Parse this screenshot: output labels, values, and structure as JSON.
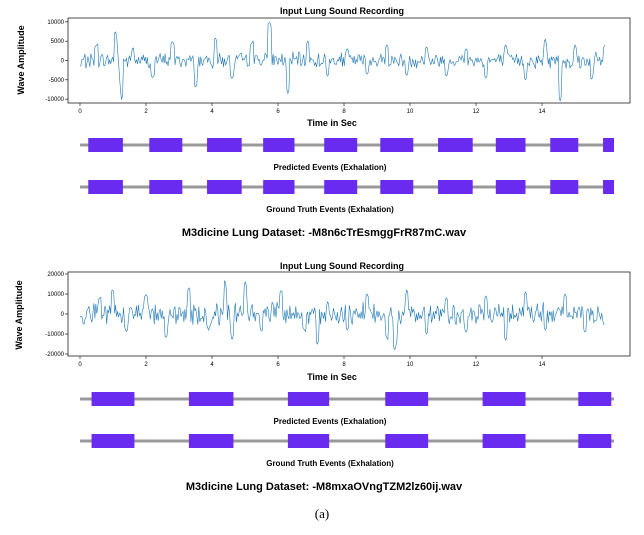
{
  "colors": {
    "signal": "#1f77b4",
    "event": "#6a2bf0",
    "timeline": "#999999",
    "axis": "#000000"
  },
  "chart_data": [
    {
      "type": "line",
      "title": "Input Lung Sound Recording",
      "xlabel": "Time in Sec",
      "ylabel": "Wave Amplitude",
      "xlim": [
        0,
        16
      ],
      "ylim": [
        -11000,
        11000
      ],
      "x_ticks": [
        "0",
        "2",
        "4",
        "6",
        "8",
        "10",
        "12",
        "14"
      ],
      "y_ticks": [
        "10000",
        "5000",
        "0",
        "-5000",
        "-10000"
      ],
      "x_tick_values": [
        0,
        2,
        4,
        6,
        8,
        10,
        12,
        14
      ],
      "y_tick_values": [
        10000,
        5000,
        0,
        -5000,
        -10000
      ],
      "series": [
        {
          "x": [
            0,
            0.5,
            1.1,
            1.25,
            1.6,
            2.2,
            2.8,
            3.5,
            4.1,
            4.6,
            5.2,
            5.75,
            6.3,
            6.9,
            7.5,
            8.1,
            8.7,
            9.3,
            9.9,
            10.5,
            11.1,
            11.7,
            12.3,
            12.9,
            13.5,
            14.1,
            14.55,
            15.0,
            15.5,
            15.9
          ],
          "values": [
            -1500,
            4000,
            7500,
            -10500,
            3500,
            -4500,
            5000,
            -7000,
            6000,
            -4800,
            4500,
            10000,
            -8500,
            5000,
            -4000,
            3000,
            -3500,
            4000,
            -3800,
            3500,
            -4000,
            3000,
            -4500,
            4000,
            -5000,
            5500,
            -10500,
            4000,
            -5000,
            4000
          ]
        }
      ],
      "events": [
        {
          "label": "Predicted Events (Exhalation)",
          "intervals": [
            [
              0.25,
              1.3
            ],
            [
              2.1,
              3.1
            ],
            [
              3.85,
              4.9
            ],
            [
              5.55,
              6.5
            ],
            [
              7.4,
              8.4
            ],
            [
              9.1,
              10.1
            ],
            [
              10.85,
              11.9
            ],
            [
              12.6,
              13.5
            ],
            [
              14.25,
              15.1
            ],
            [
              15.85,
              16.8
            ]
          ]
        },
        {
          "label": "Ground Truth Events (Exhalation)",
          "intervals": [
            [
              0.25,
              1.3
            ],
            [
              2.1,
              3.1
            ],
            [
              3.85,
              4.9
            ],
            [
              5.55,
              6.5
            ],
            [
              7.4,
              8.4
            ],
            [
              9.1,
              10.1
            ],
            [
              10.85,
              11.9
            ],
            [
              12.6,
              13.5
            ],
            [
              14.25,
              15.1
            ],
            [
              15.85,
              16.8
            ]
          ]
        }
      ],
      "caption": "M3dicine Lung Dataset: -M8n6cTrEsmggFrR87mC.wav"
    },
    {
      "type": "line",
      "title": "Input Lung Sound Recording",
      "xlabel": "Time in Sec",
      "ylabel": "Wave Amplitude",
      "xlim": [
        0,
        16
      ],
      "ylim": [
        -21000,
        21000
      ],
      "x_ticks": [
        "0",
        "2",
        "4",
        "6",
        "8",
        "10",
        "12",
        "14"
      ],
      "y_ticks": [
        "20000",
        "10000",
        "0",
        "-10000",
        "-20000"
      ],
      "x_tick_values": [
        0,
        2,
        4,
        6,
        8,
        10,
        12,
        14
      ],
      "y_tick_values": [
        20000,
        10000,
        0,
        -10000,
        -20000
      ],
      "series": [
        {
          "x": [
            0,
            0.6,
            1.0,
            1.4,
            2.0,
            2.6,
            3.3,
            3.9,
            4.4,
            4.6,
            5.0,
            5.5,
            6.1,
            6.8,
            7.2,
            7.5,
            8.1,
            8.7,
            9.3,
            9.55,
            9.9,
            10.5,
            11.1,
            11.7,
            12.3,
            12.9,
            13.5,
            14.1,
            14.7,
            15.3,
            15.9
          ],
          "values": [
            -1500,
            8000,
            12000,
            -9000,
            10000,
            -12000,
            13000,
            -8000,
            17500,
            -14000,
            16500,
            -9000,
            12000,
            -8000,
            -15000,
            6000,
            -8000,
            10000,
            -12000,
            -18000,
            12000,
            -10000,
            8000,
            -9000,
            9000,
            -13000,
            11000,
            -8000,
            10000,
            -9000,
            -5000
          ]
        }
      ],
      "events": [
        {
          "label": "Predicted Events (Exhalation)",
          "intervals": [
            [
              0.35,
              1.65
            ],
            [
              3.3,
              4.65
            ],
            [
              6.3,
              7.55
            ],
            [
              9.25,
              10.55
            ],
            [
              12.2,
              13.5
            ],
            [
              15.1,
              16.1
            ]
          ]
        },
        {
          "label": "Ground Truth Events (Exhalation)",
          "intervals": [
            [
              0.35,
              1.65
            ],
            [
              3.3,
              4.65
            ],
            [
              6.3,
              7.55
            ],
            [
              9.25,
              10.55
            ],
            [
              12.2,
              13.5
            ],
            [
              15.1,
              16.1
            ]
          ]
        }
      ],
      "caption": "M3dicine Lung Dataset: -M8mxaOVngTZM2lz60ij.wav"
    }
  ],
  "figure_label": "(a)"
}
